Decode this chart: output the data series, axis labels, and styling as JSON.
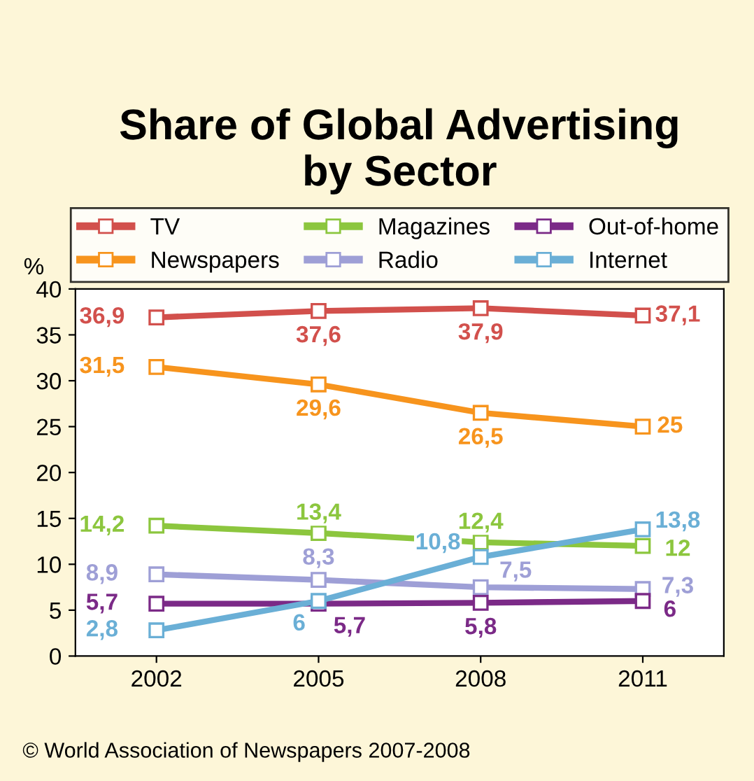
{
  "chart_data": {
    "type": "line",
    "title": "Share of Global Advertising\nby Sector",
    "ylabel": "%",
    "categories": [
      "2002",
      "2005",
      "2008",
      "2011"
    ],
    "series": [
      {
        "name": "TV",
        "color": "#d2504c",
        "values": [
          36.9,
          37.6,
          37.9,
          37.1
        ],
        "value_labels": [
          "36,9",
          "37,6",
          "37,9",
          "37,1"
        ]
      },
      {
        "name": "Newspapers",
        "color": "#f7941d",
        "values": [
          31.5,
          29.6,
          26.5,
          25
        ],
        "value_labels": [
          "31,5",
          "29,6",
          "26,5",
          "25"
        ]
      },
      {
        "name": "Magazines",
        "color": "#8cc63e",
        "values": [
          14.2,
          13.4,
          12.4,
          12
        ],
        "value_labels": [
          "14,2",
          "13,4",
          "12,4",
          "12"
        ]
      },
      {
        "name": "Radio",
        "color": "#9e9fd6",
        "values": [
          8.9,
          8.3,
          7.5,
          7.3
        ],
        "value_labels": [
          "8,9",
          "8,3",
          "7,5",
          "7,3"
        ]
      },
      {
        "name": "Out-of-home",
        "color": "#7b2a87",
        "values": [
          5.7,
          5.7,
          5.8,
          6
        ],
        "value_labels": [
          "5,7",
          "5,7",
          "5,8",
          "6"
        ]
      },
      {
        "name": "Internet",
        "color": "#6aafd6",
        "values": [
          2.8,
          6,
          10.8,
          13.8
        ],
        "value_labels": [
          "2,8",
          "6",
          "10,8",
          "13,8"
        ]
      }
    ],
    "ylim": [
      0,
      40
    ],
    "yticks": [
      0,
      5,
      10,
      15,
      20,
      25,
      30,
      35,
      40
    ],
    "marker": "square",
    "line_style": "solid",
    "legend": "top",
    "grid": false,
    "annotations": [
      "© World Association of Newspapers 2007-2008"
    ]
  }
}
